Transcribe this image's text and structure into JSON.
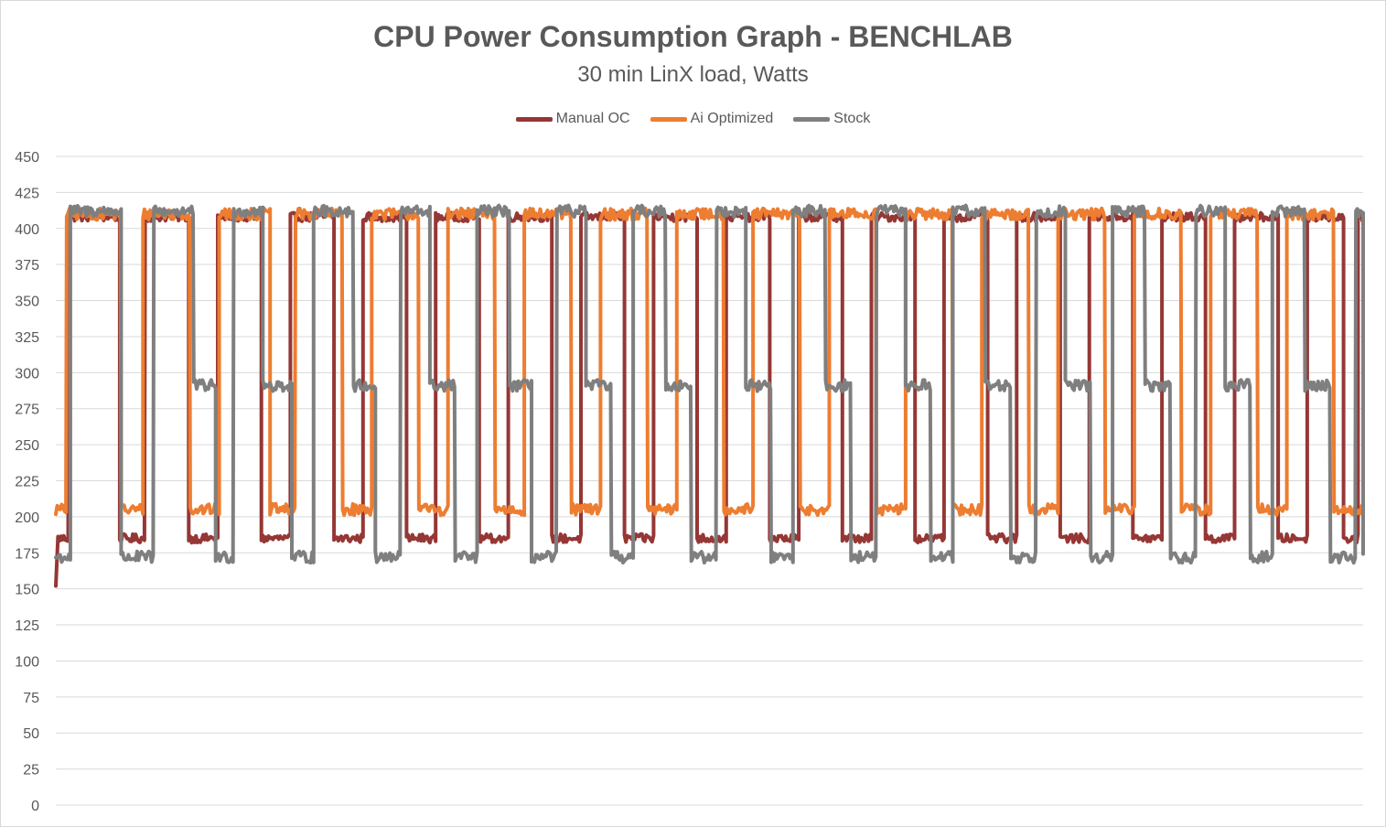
{
  "chart_data": {
    "type": "line",
    "title": "CPU Power Consumption Graph - BENCHLAB",
    "subtitle": "30 min LinX load, Watts",
    "xlabel": "",
    "ylabel": "",
    "ylim": [
      0,
      450
    ],
    "yticks": [
      0,
      25,
      50,
      75,
      100,
      125,
      150,
      175,
      200,
      225,
      250,
      275,
      300,
      325,
      350,
      375,
      400,
      425,
      450
    ],
    "ytick_labels": [
      "0",
      "25",
      "50",
      "75",
      "100",
      "125",
      "150",
      "175",
      "200",
      "225",
      "250",
      "275",
      "300",
      "325",
      "350",
      "375",
      "400",
      "425",
      "450"
    ],
    "xlim": [
      0,
      1800
    ],
    "x_unit": "seconds (approx., 30 min run; no x tick labels shown)",
    "grid": "horizontal",
    "legend_position": "top",
    "series": [
      {
        "name": "Manual OC",
        "color": "#953735",
        "start": 152,
        "start_len": 3,
        "high": 408,
        "low": 185,
        "mid": null,
        "noise": 3,
        "segments": [
          [
            "L",
            15
          ],
          [
            "H",
            70
          ],
          [
            "L",
            35
          ],
          [
            "H",
            60
          ],
          [
            "L",
            40
          ],
          [
            "H",
            60
          ],
          [
            "L",
            40
          ],
          [
            "H",
            60
          ],
          [
            "L",
            40
          ],
          [
            "H",
            60
          ],
          [
            "L",
            40
          ],
          [
            "H",
            60
          ],
          [
            "L",
            40
          ],
          [
            "H",
            60
          ],
          [
            "L",
            40
          ],
          [
            "H",
            60
          ],
          [
            "L",
            40
          ],
          [
            "H",
            60
          ],
          [
            "L",
            40
          ],
          [
            "H",
            60
          ],
          [
            "L",
            40
          ],
          [
            "H",
            60
          ],
          [
            "L",
            40
          ],
          [
            "H",
            60
          ],
          [
            "L",
            40
          ],
          [
            "H",
            60
          ],
          [
            "L",
            40
          ],
          [
            "H",
            60
          ],
          [
            "L",
            40
          ],
          [
            "H",
            60
          ],
          [
            "L",
            40
          ],
          [
            "H",
            60
          ],
          [
            "L",
            40
          ],
          [
            "H",
            60
          ],
          [
            "L",
            40
          ],
          [
            "H",
            50
          ],
          [
            "L",
            20
          ],
          [
            "H",
            12
          ]
        ]
      },
      {
        "name": "Ai Optimized",
        "color": "#ED7D31",
        "start": 205,
        "start_len": 0,
        "high": 410,
        "low": 205,
        "mid": null,
        "noise": 4,
        "segments": [
          [
            "L",
            15
          ],
          [
            "H",
            75
          ],
          [
            "L",
            30
          ],
          [
            "H",
            65
          ],
          [
            "L",
            40
          ],
          [
            "H",
            70
          ],
          [
            "L",
            35
          ],
          [
            "H",
            65
          ],
          [
            "L",
            40
          ],
          [
            "H",
            65
          ],
          [
            "L",
            40
          ],
          [
            "H",
            65
          ],
          [
            "L",
            40
          ],
          [
            "H",
            65
          ],
          [
            "L",
            40
          ],
          [
            "H",
            65
          ],
          [
            "L",
            40
          ],
          [
            "H",
            65
          ],
          [
            "L",
            40
          ],
          [
            "H",
            65
          ],
          [
            "L",
            40
          ],
          [
            "H",
            65
          ],
          [
            "L",
            40
          ],
          [
            "H",
            65
          ],
          [
            "L",
            40
          ],
          [
            "H",
            65
          ],
          [
            "L",
            40
          ],
          [
            "H",
            65
          ],
          [
            "L",
            40
          ],
          [
            "H",
            65
          ],
          [
            "L",
            40
          ],
          [
            "H",
            65
          ],
          [
            "L",
            40
          ],
          [
            "H",
            65
          ],
          [
            "L",
            40
          ],
          [
            "H",
            30
          ]
        ]
      },
      {
        "name": "Stock",
        "color": "#7F7F7F",
        "start": 172,
        "start_len": 0,
        "high": 412,
        "low": 172,
        "mid": 291,
        "noise": 4,
        "segments": [
          [
            "L",
            20
          ],
          [
            "H",
            70
          ],
          [
            "L",
            45
          ],
          [
            "H",
            55
          ],
          [
            "M",
            30
          ],
          [
            "L",
            25
          ],
          [
            "H",
            40
          ],
          [
            "M",
            40
          ],
          [
            "L",
            30
          ],
          [
            "H",
            55
          ],
          [
            "M",
            30
          ],
          [
            "L",
            35
          ],
          [
            "H",
            40
          ],
          [
            "M",
            35
          ],
          [
            "L",
            30
          ],
          [
            "H",
            45
          ],
          [
            "M",
            30
          ],
          [
            "L",
            35
          ],
          [
            "H",
            40
          ],
          [
            "M",
            35
          ],
          [
            "L",
            30
          ],
          [
            "H",
            45
          ],
          [
            "M",
            35
          ],
          [
            "L",
            35
          ],
          [
            "H",
            40
          ],
          [
            "M",
            35
          ],
          [
            "L",
            30
          ],
          [
            "H",
            45
          ],
          [
            "M",
            35
          ],
          [
            "L",
            35
          ],
          [
            "H",
            40
          ],
          [
            "M",
            35
          ],
          [
            "L",
            30
          ],
          [
            "H",
            45
          ],
          [
            "M",
            35
          ],
          [
            "L",
            35
          ],
          [
            "H",
            40
          ],
          [
            "M",
            35
          ],
          [
            "L",
            30
          ],
          [
            "H",
            45
          ],
          [
            "M",
            35
          ],
          [
            "L",
            35
          ],
          [
            "H",
            40
          ],
          [
            "M",
            35
          ],
          [
            "L",
            30
          ],
          [
            "H",
            45
          ],
          [
            "M",
            35
          ],
          [
            "L",
            35
          ],
          [
            "H",
            40
          ],
          [
            "M",
            35
          ],
          [
            "L",
            30
          ],
          [
            "H",
            45
          ],
          [
            "M",
            35
          ],
          [
            "L",
            35
          ],
          [
            "H",
            40
          ]
        ]
      }
    ]
  }
}
